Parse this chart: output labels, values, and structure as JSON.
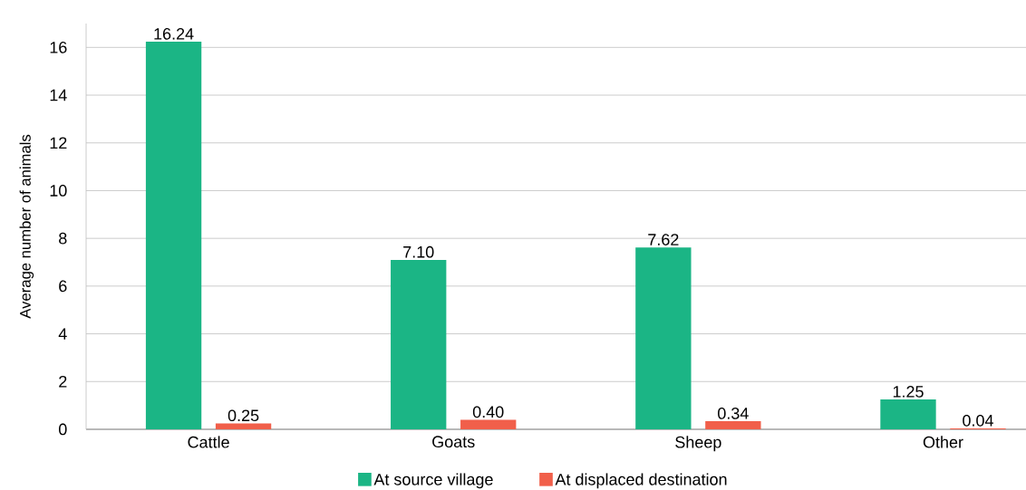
{
  "chart_data": {
    "type": "bar",
    "ylabel": "Average number of animals",
    "categories": [
      "Cattle",
      "Goats",
      "Sheep",
      "Other"
    ],
    "series": [
      {
        "name": "At source village",
        "color": "#1bb585",
        "values": [
          16.24,
          7.1,
          7.62,
          1.25
        ],
        "value_labels": [
          "16.24",
          "7.10",
          "7.62",
          "1.25"
        ]
      },
      {
        "name": "At displaced destination",
        "color": "#f15f4a",
        "values": [
          0.25,
          0.4,
          0.34,
          0.04
        ],
        "value_labels": [
          "0.25",
          "0.40",
          "0.34",
          "0.04"
        ]
      }
    ],
    "ylim": [
      0,
      17
    ],
    "yticks": [
      0,
      2,
      4,
      6,
      8,
      10,
      12,
      14,
      16
    ],
    "grid": "y",
    "legend": "bottom"
  }
}
